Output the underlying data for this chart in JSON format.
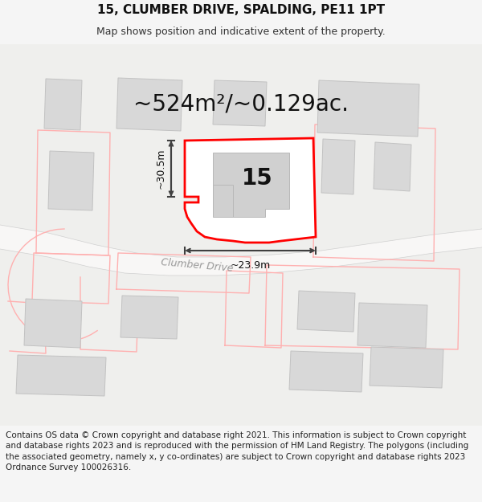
{
  "title": "15, CLUMBER DRIVE, SPALDING, PE11 1PT",
  "subtitle": "Map shows position and indicative extent of the property.",
  "area_label": "~524m²/~0.129ac.",
  "number_label": "15",
  "width_label": "~23.9m",
  "height_label": "~30.5m",
  "road_label": "Clumber Drive",
  "footer": "Contains OS data © Crown copyright and database right 2021. This information is subject to Crown copyright and database rights 2023 and is reproduced with the permission of HM Land Registry. The polygons (including the associated geometry, namely x, y co-ordinates) are subject to Crown copyright and database rights 2023 Ordnance Survey 100026316.",
  "bg_color": "#f5f5f5",
  "map_bg": "#efefed",
  "building_color": "#d8d8d8",
  "building_edge": "#c2c2c2",
  "road_fill": "#f8f7f6",
  "plot_line_color": "#ff0000",
  "other_boundary_color": "#ffb0b0",
  "dim_line_color": "#404040",
  "title_fontsize": 11,
  "subtitle_fontsize": 9,
  "area_fontsize": 20,
  "number_fontsize": 20,
  "road_label_fontsize": 9,
  "footer_fontsize": 7.5
}
